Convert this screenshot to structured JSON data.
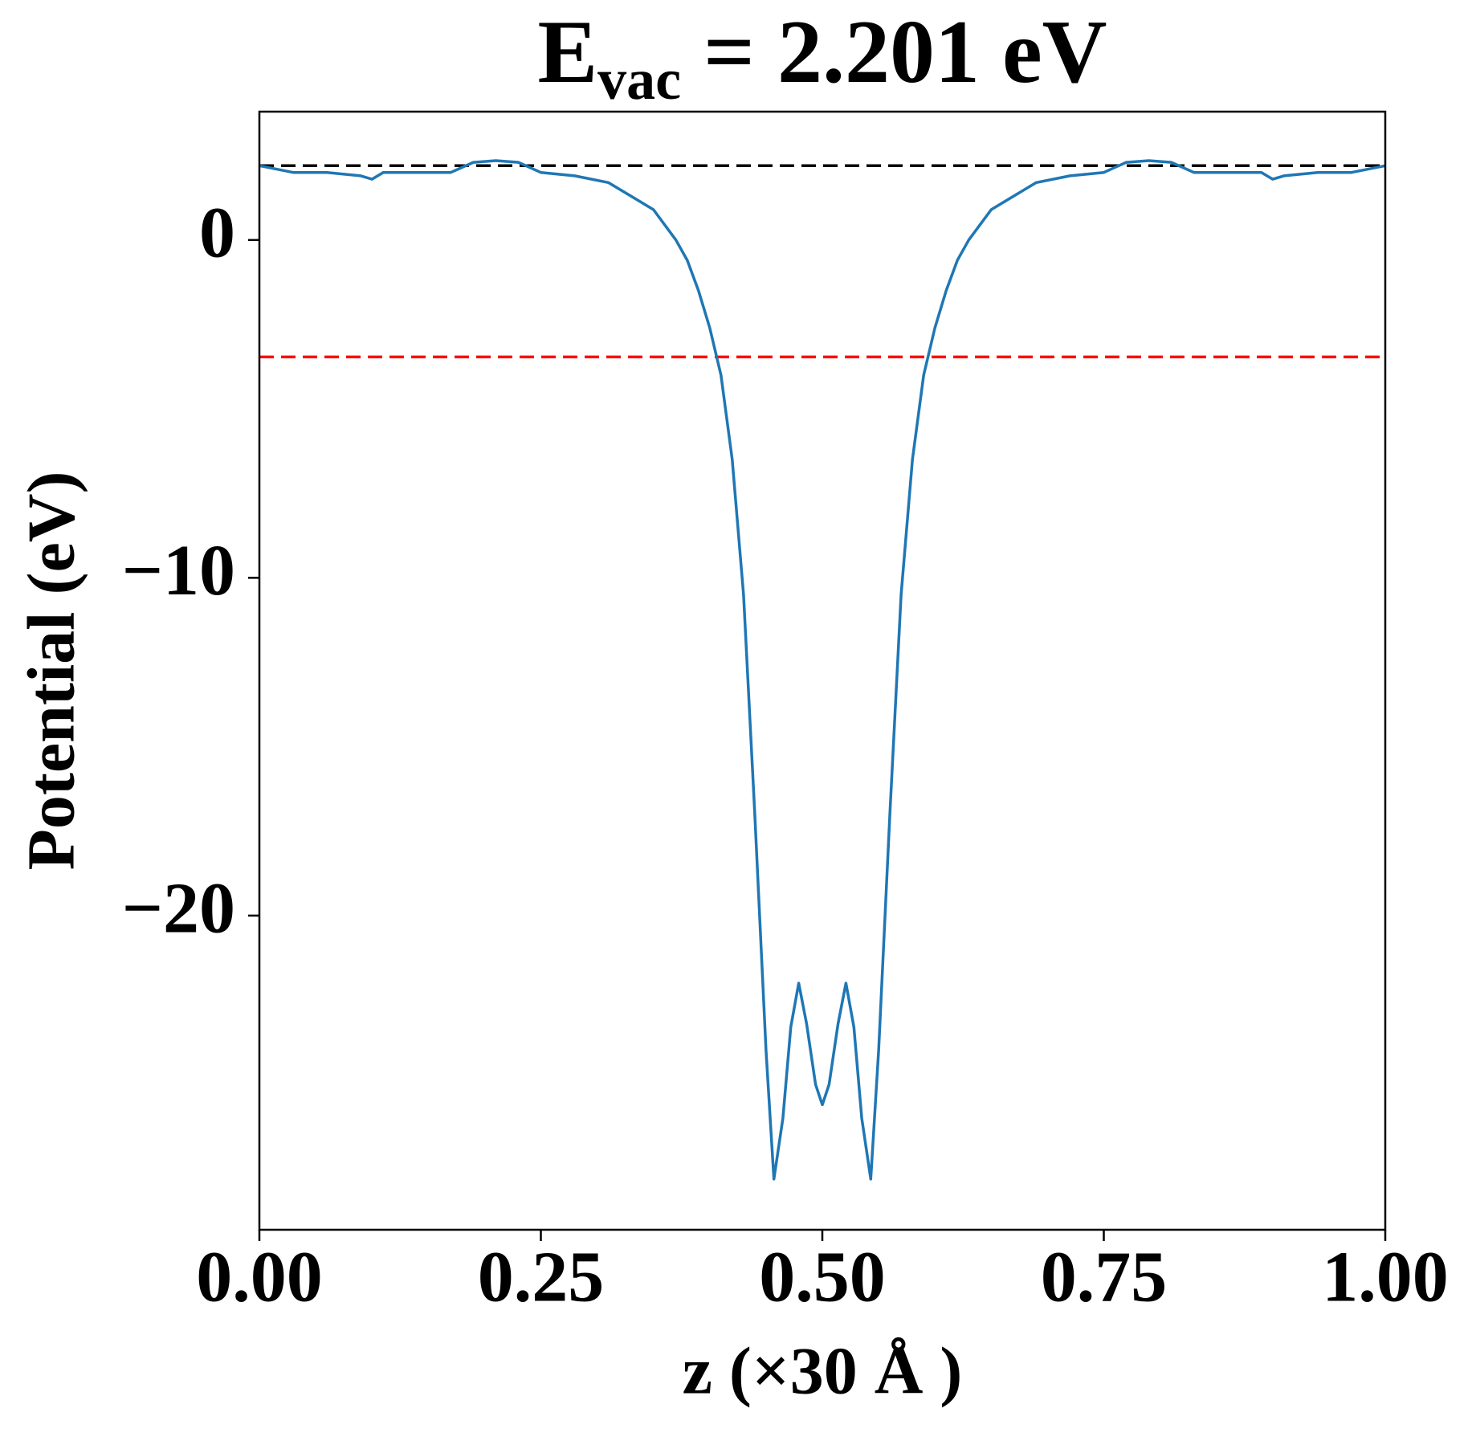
{
  "chart_data": {
    "type": "line",
    "title": {
      "main": "E",
      "sub": "vac",
      "rest": " = 2.201 eV"
    },
    "xlabel": "z (×30 Å )",
    "ylabel": "Potential (eV)",
    "x": [
      0,
      0.03,
      0.06,
      0.09,
      0.1,
      0.11,
      0.13,
      0.17,
      0.19,
      0.21,
      0.23,
      0.25,
      0.28,
      0.31,
      0.33,
      0.35,
      0.37,
      0.38,
      0.39,
      0.4,
      0.41,
      0.42,
      0.43,
      0.44,
      0.45,
      0.457,
      0.465,
      0.472,
      0.479,
      0.486,
      0.494,
      0.5,
      0.506,
      0.514,
      0.521,
      0.528,
      0.535,
      0.543,
      0.55,
      0.56,
      0.57,
      0.58,
      0.59,
      0.6,
      0.61,
      0.62,
      0.63,
      0.65,
      0.67,
      0.69,
      0.72,
      0.75,
      0.77,
      0.79,
      0.81,
      0.83,
      0.87,
      0.89,
      0.9,
      0.91,
      0.94,
      0.97,
      1.0
    ],
    "series": [
      {
        "name": "potential",
        "color": "#1f77b4",
        "values": [
          2.2,
          2.0,
          2.0,
          1.9,
          1.8,
          2.0,
          2.0,
          2.0,
          2.3,
          2.35,
          2.3,
          2.0,
          1.9,
          1.7,
          1.3,
          0.9,
          0.0,
          -0.6,
          -1.5,
          -2.6,
          -4.0,
          -6.5,
          -10.5,
          -17,
          -24,
          -27.8,
          -26.0,
          -23.3,
          -22.0,
          -23.2,
          -25.0,
          -25.6,
          -25.0,
          -23.2,
          -22.0,
          -23.3,
          -26.0,
          -27.8,
          -24,
          -17,
          -10.5,
          -6.5,
          -4.0,
          -2.6,
          -1.5,
          -0.6,
          0.0,
          0.9,
          1.3,
          1.7,
          1.9,
          2.0,
          2.3,
          2.35,
          2.3,
          2.0,
          2.0,
          2.0,
          1.8,
          1.9,
          2.0,
          2.0,
          2.2
        ]
      }
    ],
    "hlines": [
      {
        "value": 2.201,
        "color": "#000000"
      },
      {
        "value": -3.46,
        "color": "#ff0000"
      }
    ],
    "xlim": [
      0,
      1
    ],
    "ylim": [
      -29.3,
      3.8
    ],
    "xticks": [
      {
        "value": 0,
        "label": "0.00"
      },
      {
        "value": 0.25,
        "label": "0.25"
      },
      {
        "value": 0.5,
        "label": "0.50"
      },
      {
        "value": 0.75,
        "label": "0.75"
      },
      {
        "value": 1,
        "label": "1.00"
      }
    ],
    "yticks": [
      {
        "value": 0,
        "label": "0"
      },
      {
        "value": -10,
        "label": "−10"
      },
      {
        "value": -20,
        "label": "−20"
      }
    ]
  }
}
